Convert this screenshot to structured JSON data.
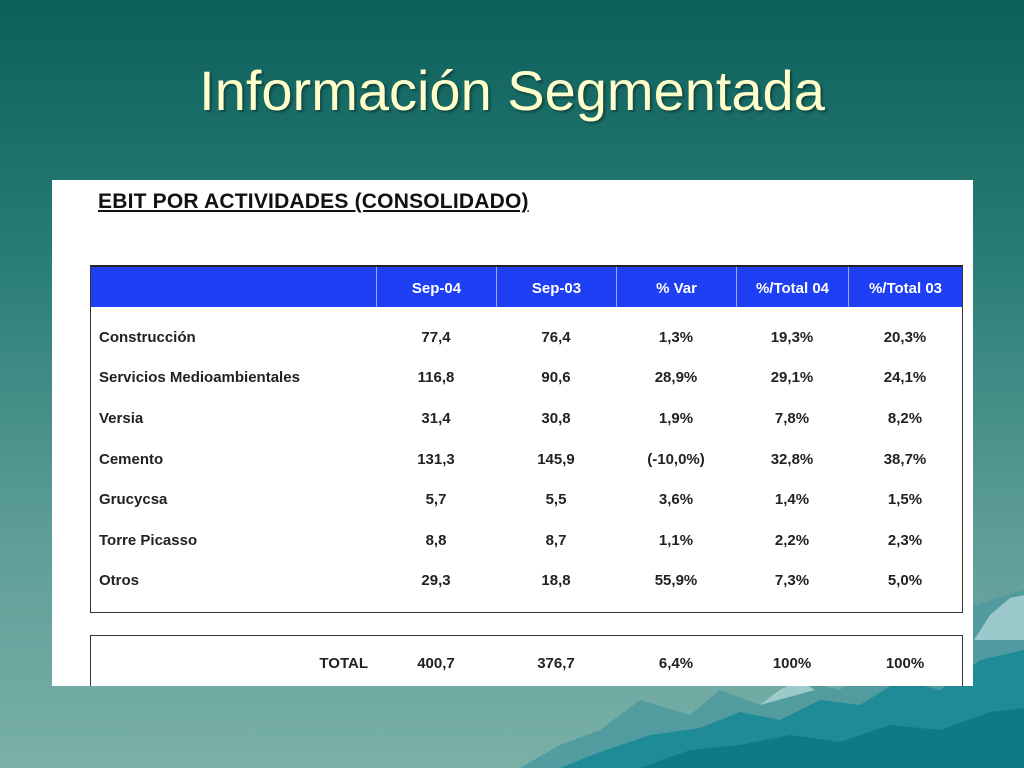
{
  "slide": {
    "title": "Información Segmentada"
  },
  "document": {
    "heading": "EBIT POR ACTIVIDADES (CONSOLIDADO)",
    "columns": [
      "",
      "Sep-04",
      "Sep-03",
      "% Var",
      "%/Total 04",
      "%/Total 03"
    ],
    "rows": [
      {
        "label": "Construcción",
        "values": [
          "77,4",
          "76,4",
          "1,3%",
          "19,3%",
          "20,3%"
        ]
      },
      {
        "label": "Servicios Medioambientales",
        "values": [
          "116,8",
          "90,6",
          "28,9%",
          "29,1%",
          "24,1%"
        ]
      },
      {
        "label": "Versia",
        "values": [
          "31,4",
          "30,8",
          "1,9%",
          "7,8%",
          "8,2%"
        ]
      },
      {
        "label": "Cemento",
        "values": [
          "131,3",
          "145,9",
          "(-10,0%)",
          "32,8%",
          "38,7%"
        ]
      },
      {
        "label": "Grucycsa",
        "values": [
          "5,7",
          "5,5",
          "3,6%",
          "1,4%",
          "1,5%"
        ]
      },
      {
        "label": "Torre Picasso",
        "values": [
          "8,8",
          "8,7",
          "1,1%",
          "2,2%",
          "2,3%"
        ]
      },
      {
        "label": "Otros",
        "values": [
          "29,3",
          "18,8",
          "55,9%",
          "7,3%",
          "5,0%"
        ]
      }
    ],
    "total": {
      "label": "TOTAL",
      "values": [
        "400,7",
        "376,7",
        "6,4%",
        "100%",
        "100%"
      ]
    }
  },
  "colors": {
    "header_blue": "#1f3ff5",
    "title_yellow": "#ffffcc",
    "background_teal": "#2b7e78"
  }
}
